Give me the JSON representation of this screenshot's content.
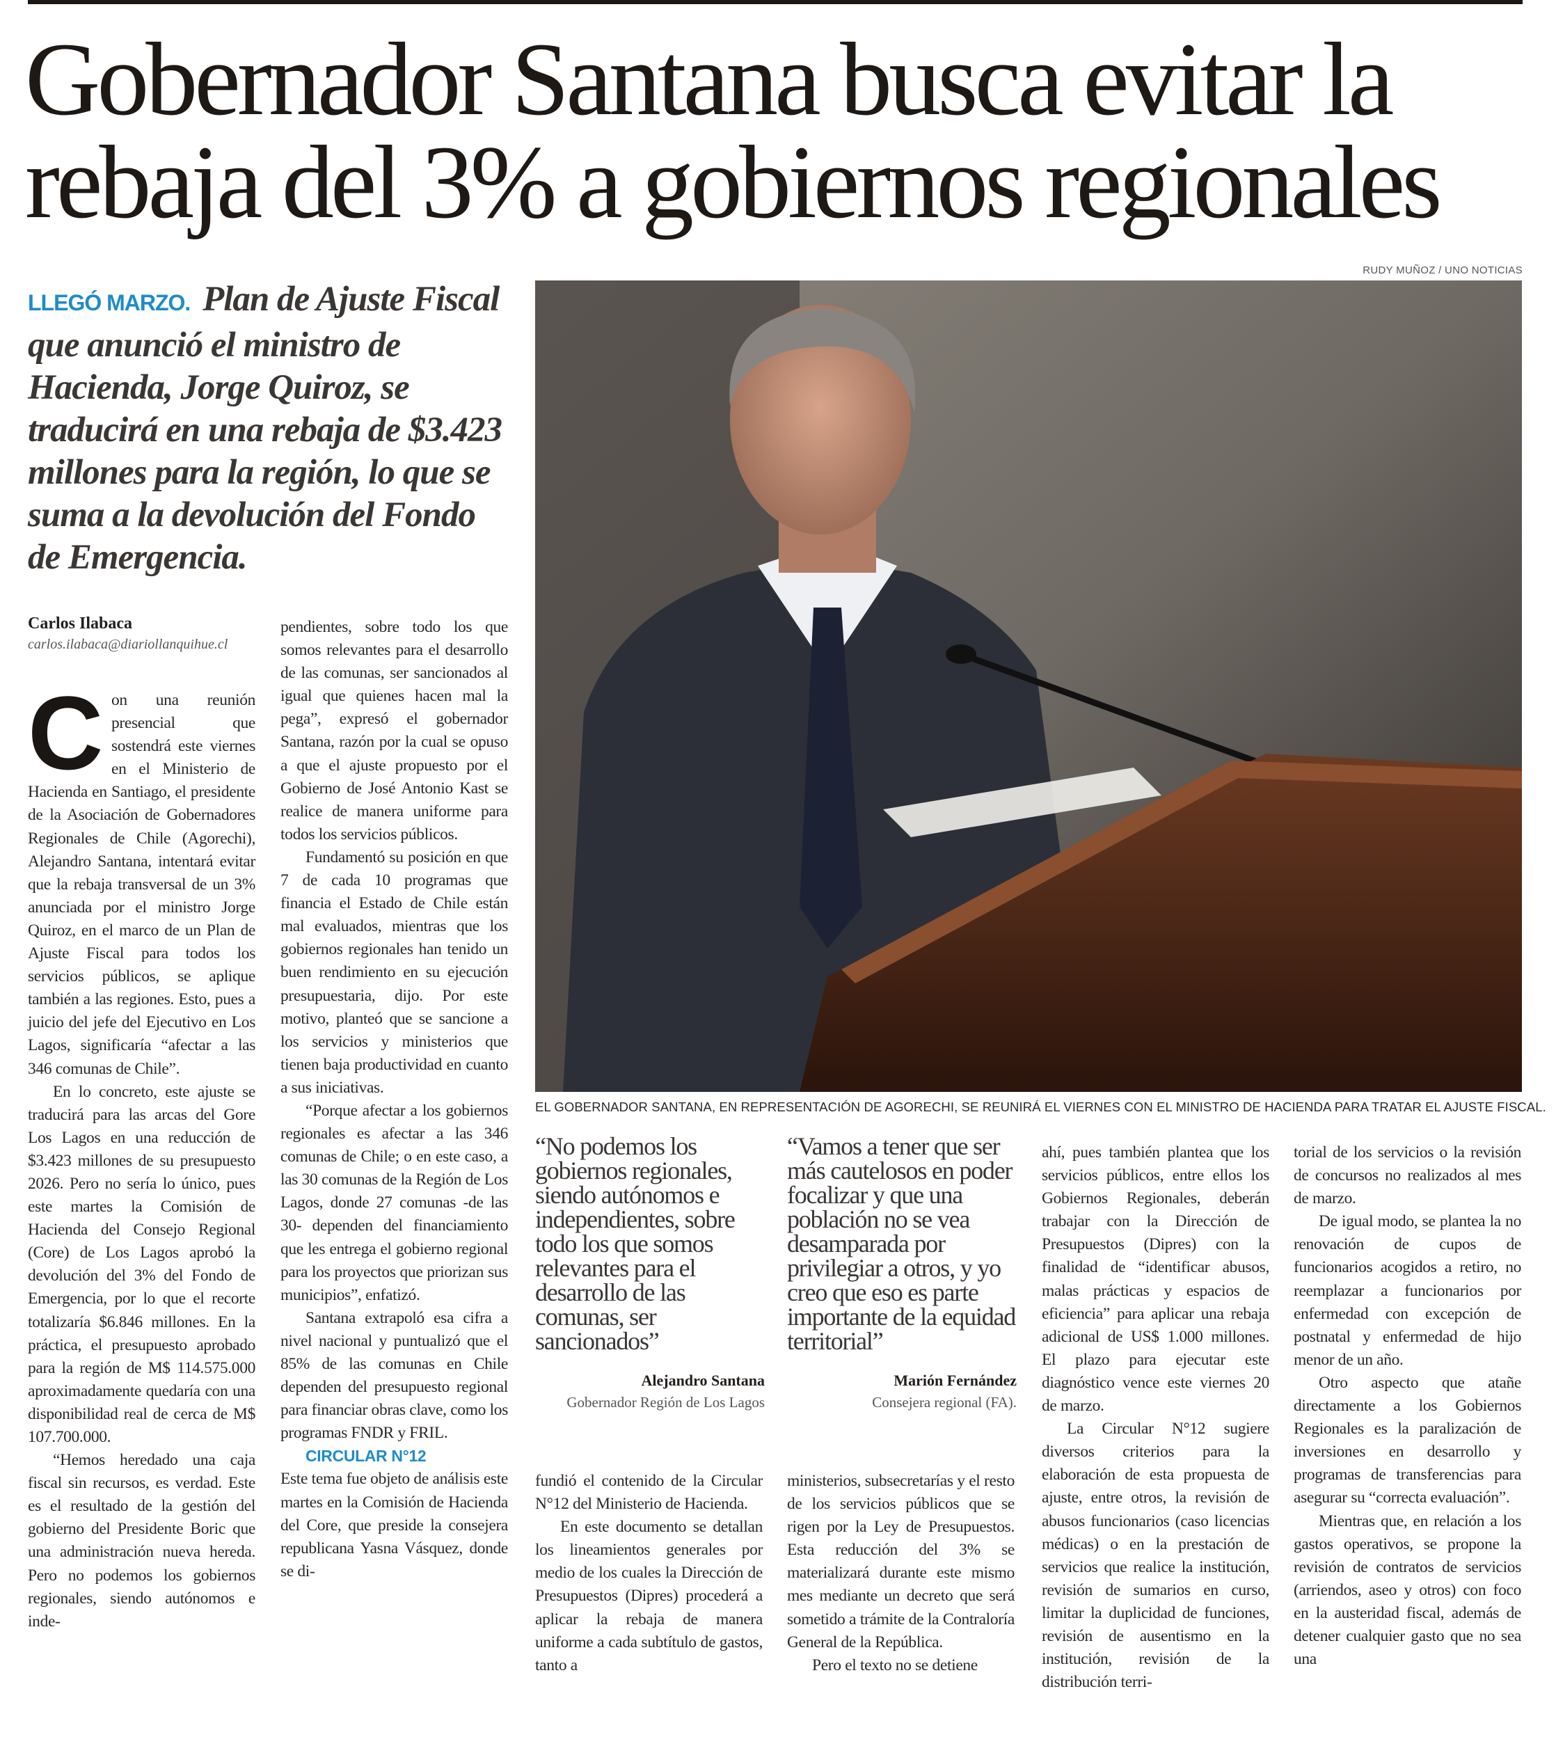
{
  "headline": {
    "line1": "Gobernador Santana busca evitar la",
    "line2": "rebaja del 3% a gobiernos regionales"
  },
  "lead": {
    "kicker": "LLEGÓ MARZO.",
    "text": "Plan de Ajuste Fiscal que anunció el ministro de Hacienda, Jorge Quiroz, se traducirá en una rebaja de $3.423 millones para la región, lo que se suma a la devolución del Fondo de Emergencia."
  },
  "photo": {
    "credit": "RUDY MUÑOZ / UNO NOTICIAS",
    "caption": "EL GOBERNADOR SANTANA, EN REPRESENTACIÓN DE AGORECHI, SE REUNIRÁ EL VIERNES CON EL MINISTRO DE HACIENDA PARA TRATAR EL AJUSTE FISCAL."
  },
  "byline": {
    "name": "Carlos Ilabaca",
    "email": "carlos.ilabaca@diariollanquihue.cl"
  },
  "columns": {
    "col1": {
      "dropcap": "C",
      "paragraphs": [
        "on una reunión presencial que sostendrá este viernes en el Ministerio de Hacienda en Santiago, el presidente de la Asociación de Gobernadores Regionales de Chile (Agorechi), Alejandro Santana, intentará evitar que la rebaja transversal de un 3% anunciada por el ministro Jorge Quiroz, en el marco de un Plan de Ajuste Fiscal para todos los servicios públicos, se aplique también a las regiones. Esto, pues a juicio del jefe del Ejecutivo en Los Lagos, significaría “afectar a las 346 comunas de Chile”.",
        "En lo concreto, este ajuste se traducirá para las arcas del Gore Los Lagos en una reducción de $3.423 millones de su presupuesto 2026. Pero no sería lo único, pues este martes la Comisión de Hacienda del Consejo Regional (Core) de Los Lagos aprobó la devolución del 3% del Fondo de Emergencia, por lo que el recorte totalizaría $6.846 millones. En la práctica, el presupuesto aprobado para la región de M$ 114.575.000 aproximadamente quedaría con una disponibilidad real de cerca de M$ 107.700.000.",
        "“Hemos heredado una caja fiscal sin recursos, es verdad. Este es el resultado de la gestión del gobierno del Presidente Boric que una administración nueva hereda. Pero no podemos los gobiernos regionales, siendo autónomos e inde-"
      ]
    },
    "col2": {
      "paragraphs": [
        "pendientes, sobre todo los que somos relevantes para el desarrollo de las comunas, ser sancionados al igual que quienes hacen mal la pega”, expresó el gobernador Santana, razón por la cual se opuso a que el ajuste propuesto por el Gobierno de José Antonio Kast se realice de manera uniforme para todos los servicios públicos.",
        "Fundamentó su posición en que 7 de cada 10 programas que financia el Estado de Chile están mal evaluados, mientras que los gobiernos regionales han tenido un buen rendimiento en su ejecución presupuestaria, dijo. Por este motivo, planteó que se sancione a los servicios y ministerios que tienen baja productividad en cuanto a sus iniciativas.",
        "“Porque afectar a los gobiernos regionales es afectar a las 346 comunas de Chile; o en este caso, a las 30 comunas de la Región de Los Lagos, donde 27 comunas -de las 30- dependen del financiamiento que les entrega el gobierno regional para los proyectos que priorizan sus municipios”, enfatizó.",
        "Santana extrapoló esa cifra a nivel nacional y puntualizó que el 85% de las comunas en Chile dependen del presupuesto regional para financiar obras clave, como los programas FNDR y FRIL."
      ],
      "subhead": "CIRCULAR N°12",
      "after_subhead": "Este tema fue objeto de análisis este martes en la Comisión de Hacienda del Core, que preside la consejera republicana Yasna Vásquez, donde se di-"
    },
    "col3": {
      "paragraphs": [
        "fundió el contenido de la Circular N°12 del Ministerio de Hacienda.",
        "En este documento se detallan los lineamientos generales por medio de los cuales la Dirección de Presupuestos (Dipres) procederá a aplicar la rebaja de manera uniforme a cada subtítulo de gastos, tanto a"
      ]
    },
    "col4": {
      "paragraphs": [
        "ministerios, subsecretarías y el resto de los servicios públicos que se rigen por la Ley de Presupuestos. Esta reducción del 3% se materializará durante este mismo mes mediante un decreto que será sometido a trámite de la Contraloría General de la República.",
        "Pero el texto no se detiene"
      ]
    },
    "col5": {
      "paragraphs": [
        "ahí, pues también plantea que los servicios públicos, entre ellos los Gobiernos Regionales, deberán trabajar con la Dirección de Presupuestos (Dipres) con la finalidad de “identificar abusos, malas prácticas y espacios de eficiencia” para aplicar una rebaja adicional de US$ 1.000 millones. El plazo para ejecutar este diagnóstico vence este viernes 20 de marzo.",
        "La Circular N°12 sugiere diversos criterios para la elaboración de esta propuesta de ajuste, entre otros, la revisión de abusos funcionarios (caso licencias médicas) o en la prestación de servicios que realice la institución, revisión de sumarios en curso, limitar la duplicidad de funciones, revisión de ausentismo en la institución, revisión de la distribución terri-"
      ]
    },
    "col6": {
      "paragraphs": [
        "torial de los servicios o la revisión de concursos no realizados al mes de marzo.",
        "De igual modo, se plantea la no renovación de cupos de funcionarios acogidos a retiro, no reemplazar a funcionarios por enfermedad con excepción de postnatal y enfermedad de hijo menor de un año.",
        "Otro aspecto que atañe directamente a los Gobiernos Regionales es la paralización de inversiones en desarrollo y programas de transferencias para asegurar su “correcta evaluación”.",
        "Mientras que, en relación a los gastos operativos, se propone la revisión de contratos de servicios (arriendos, aseo y otros) con foco en la austeridad fiscal, además de detener cualquier gasto que no sea una"
      ]
    }
  },
  "quotes": [
    {
      "text": "“No podemos los gobiernos regionales, siendo autónomos e independientes, sobre todo los que somos relevantes para el desarrollo de las comunas, ser sancionados”",
      "name": "Alejandro Santana",
      "role": "Gobernador Región de Los Lagos"
    },
    {
      "text": "“Vamos a tener que ser más cautelosos en poder focalizar y que una población no se vea desamparada por privilegiar a otros, y yo creo que eso es parte importante de la equidad territorial”",
      "name": "Marión Fernández",
      "role": "Consejera regional (FA)."
    }
  ],
  "colors": {
    "accent": "#1f8bc9",
    "text": "#231f1c"
  }
}
